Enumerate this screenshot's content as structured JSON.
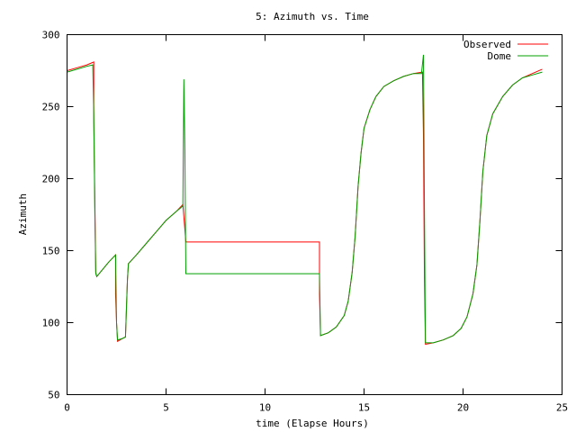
{
  "chart_data": {
    "type": "line",
    "title": "5: Azimuth vs. Time",
    "xlabel": "time (Elapse Hours)",
    "ylabel": "Azimuth",
    "xlim": [
      0,
      25
    ],
    "ylim": [
      50,
      300
    ],
    "xticks": [
      0,
      5,
      10,
      15,
      20,
      25
    ],
    "yticks": [
      50,
      100,
      150,
      200,
      250,
      300
    ],
    "grid": false,
    "legend_position": "top-right",
    "series": [
      {
        "name": "Observed",
        "color": "#ff0000",
        "points": [
          [
            0,
            275
          ],
          [
            0.5,
            277
          ],
          [
            1.0,
            279
          ],
          [
            1.35,
            281
          ],
          [
            1.35,
            240
          ],
          [
            1.42,
            170
          ],
          [
            1.45,
            135
          ],
          [
            1.5,
            132
          ],
          [
            1.8,
            137
          ],
          [
            2.1,
            142
          ],
          [
            2.45,
            147
          ],
          [
            2.45,
            120
          ],
          [
            2.5,
            100
          ],
          [
            2.55,
            87
          ],
          [
            2.8,
            89
          ],
          [
            2.95,
            90
          ],
          [
            3.0,
            110
          ],
          [
            3.05,
            130
          ],
          [
            3.1,
            141
          ],
          [
            3.5,
            147
          ],
          [
            4.0,
            155
          ],
          [
            4.5,
            163
          ],
          [
            5.0,
            171
          ],
          [
            5.5,
            177
          ],
          [
            5.85,
            182
          ],
          [
            5.95,
            165
          ],
          [
            6.0,
            156
          ],
          [
            12.75,
            156
          ],
          [
            12.75,
            120
          ],
          [
            12.8,
            91
          ],
          [
            13.2,
            93
          ],
          [
            13.6,
            97
          ],
          [
            14.0,
            105
          ],
          [
            14.2,
            115
          ],
          [
            14.4,
            135
          ],
          [
            14.55,
            160
          ],
          [
            14.7,
            195
          ],
          [
            14.85,
            218
          ],
          [
            15.0,
            235
          ],
          [
            15.3,
            248
          ],
          [
            15.6,
            257
          ],
          [
            16.0,
            264
          ],
          [
            16.5,
            268
          ],
          [
            17.0,
            271
          ],
          [
            17.5,
            273
          ],
          [
            17.95,
            274
          ],
          [
            18.0,
            230
          ],
          [
            18.05,
            130
          ],
          [
            18.1,
            85
          ],
          [
            18.5,
            86
          ],
          [
            19.0,
            88
          ],
          [
            19.5,
            91
          ],
          [
            19.9,
            96
          ],
          [
            20.2,
            104
          ],
          [
            20.5,
            120
          ],
          [
            20.7,
            140
          ],
          [
            20.85,
            170
          ],
          [
            21.0,
            205
          ],
          [
            21.2,
            230
          ],
          [
            21.5,
            245
          ],
          [
            22.0,
            257
          ],
          [
            22.5,
            265
          ],
          [
            23.0,
            270
          ],
          [
            23.5,
            273
          ],
          [
            24.0,
            276
          ]
        ]
      },
      {
        "name": "Dome",
        "color": "#00a000",
        "points": [
          [
            0,
            274
          ],
          [
            0.5,
            276
          ],
          [
            1.0,
            278
          ],
          [
            1.3,
            279
          ],
          [
            1.35,
            245
          ],
          [
            1.4,
            180
          ],
          [
            1.45,
            134
          ],
          [
            1.5,
            132
          ],
          [
            1.8,
            137
          ],
          [
            2.1,
            142
          ],
          [
            2.45,
            147
          ],
          [
            2.5,
            100
          ],
          [
            2.55,
            88
          ],
          [
            2.8,
            89
          ],
          [
            2.95,
            90
          ],
          [
            3.0,
            110
          ],
          [
            3.05,
            130
          ],
          [
            3.1,
            141
          ],
          [
            3.5,
            147
          ],
          [
            4.0,
            155
          ],
          [
            4.5,
            163
          ],
          [
            5.0,
            171
          ],
          [
            5.5,
            177
          ],
          [
            5.85,
            181
          ],
          [
            5.9,
            269
          ],
          [
            5.95,
            220
          ],
          [
            6.0,
            134
          ],
          [
            12.75,
            134
          ],
          [
            12.8,
            91
          ],
          [
            13.2,
            93
          ],
          [
            13.6,
            97
          ],
          [
            14.0,
            105
          ],
          [
            14.2,
            115
          ],
          [
            14.4,
            135
          ],
          [
            14.55,
            160
          ],
          [
            14.7,
            195
          ],
          [
            14.85,
            218
          ],
          [
            15.0,
            235
          ],
          [
            15.3,
            248
          ],
          [
            15.6,
            257
          ],
          [
            16.0,
            264
          ],
          [
            16.5,
            268
          ],
          [
            17.0,
            271
          ],
          [
            17.5,
            273
          ],
          [
            17.9,
            273
          ],
          [
            18.0,
            286
          ],
          [
            18.05,
            180
          ],
          [
            18.1,
            86
          ],
          [
            18.5,
            86
          ],
          [
            19.0,
            88
          ],
          [
            19.5,
            91
          ],
          [
            19.9,
            96
          ],
          [
            20.2,
            104
          ],
          [
            20.5,
            120
          ],
          [
            20.7,
            140
          ],
          [
            20.85,
            170
          ],
          [
            21.0,
            205
          ],
          [
            21.2,
            230
          ],
          [
            21.5,
            245
          ],
          [
            22.0,
            257
          ],
          [
            22.5,
            265
          ],
          [
            23.0,
            270
          ],
          [
            23.5,
            272
          ],
          [
            24.0,
            274
          ]
        ]
      }
    ]
  }
}
